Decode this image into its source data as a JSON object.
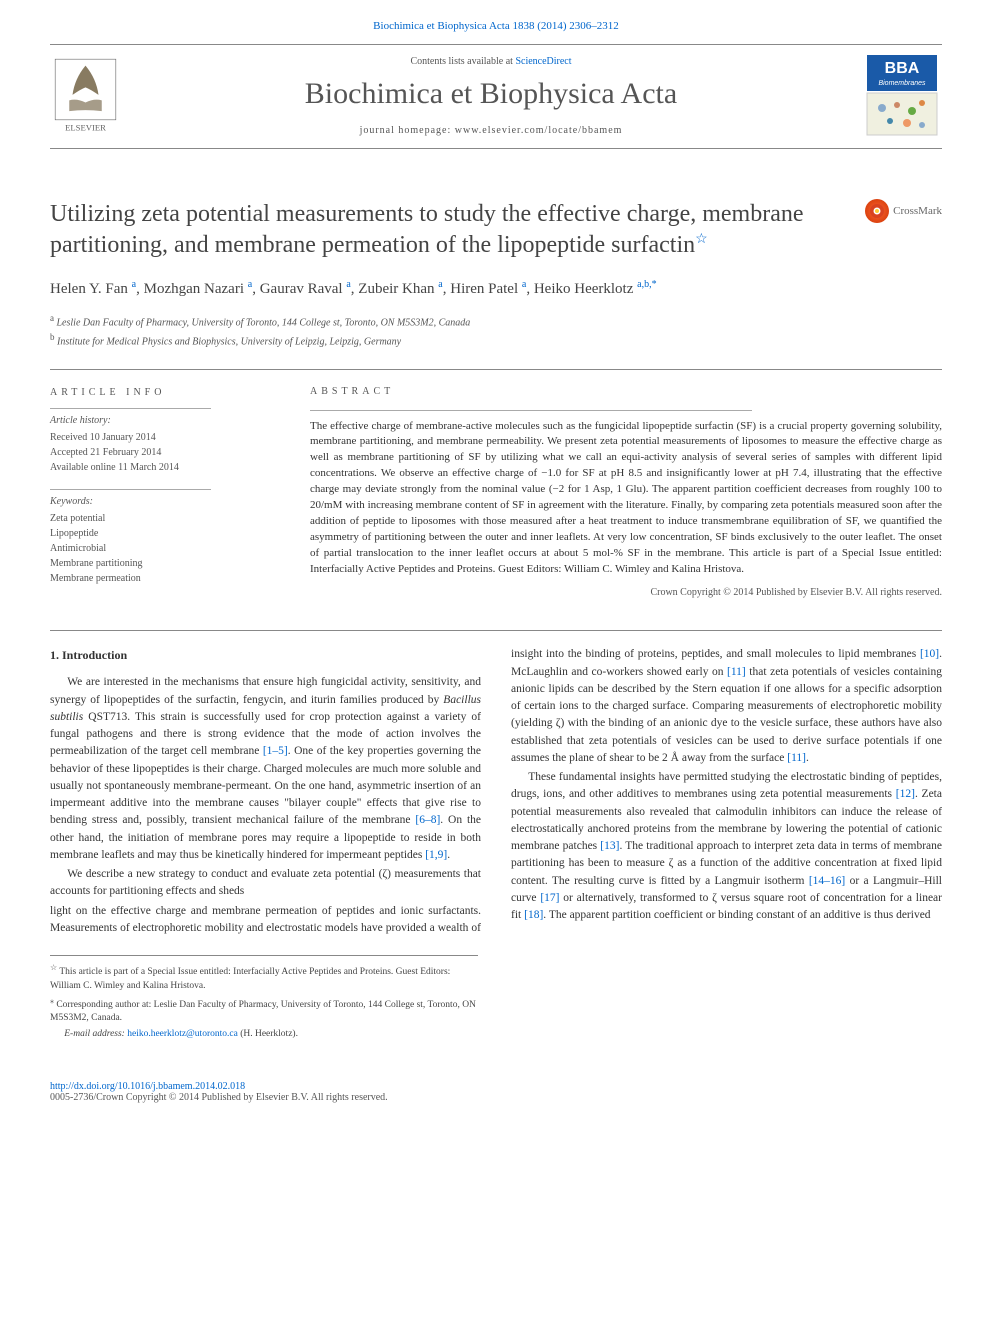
{
  "header": {
    "top_link": "Biochimica et Biophysica Acta 1838 (2014) 2306–2312",
    "contents_prefix": "Contents lists available at ",
    "contents_link": "ScienceDirect",
    "journal_name": "Biochimica et Biophysica Acta",
    "homepage_prefix": "journal homepage: ",
    "homepage_url": "www.elsevier.com/locate/bbamem",
    "elsevier_label": "ELSEVIER",
    "bba_label": "BBA",
    "bba_sublabel": "Biomembranes"
  },
  "title": "Utilizing zeta potential measurements to study the effective charge, membrane partitioning, and membrane permeation of the lipopeptide surfactin",
  "title_star": "☆",
  "crossmark_label": "CrossMark",
  "authors": [
    {
      "name": "Helen Y. Fan",
      "aff": "a"
    },
    {
      "name": "Mozhgan Nazari",
      "aff": "a"
    },
    {
      "name": "Gaurav Raval",
      "aff": "a"
    },
    {
      "name": "Zubeir Khan",
      "aff": "a"
    },
    {
      "name": "Hiren Patel",
      "aff": "a"
    },
    {
      "name": "Heiko Heerklotz",
      "aff": "a,b,",
      "corr": true
    }
  ],
  "affiliations": [
    {
      "sup": "a",
      "text": "Leslie Dan Faculty of Pharmacy, University of Toronto, 144 College st, Toronto, ON M5S3M2, Canada"
    },
    {
      "sup": "b",
      "text": "Institute for Medical Physics and Biophysics, University of Leipzig, Leipzig, Germany"
    }
  ],
  "article_info": {
    "heading": "article info",
    "history_label": "Article history:",
    "received": "Received 10 January 2014",
    "accepted": "Accepted 21 February 2014",
    "online": "Available online 11 March 2014",
    "keywords_label": "Keywords:",
    "keywords": [
      "Zeta potential",
      "Lipopeptide",
      "Antimicrobial",
      "Membrane partitioning",
      "Membrane permeation"
    ]
  },
  "abstract": {
    "heading": "abstract",
    "text": "The effective charge of membrane-active molecules such as the fungicidal lipopeptide surfactin (SF) is a crucial property governing solubility, membrane partitioning, and membrane permeability. We present zeta potential measurements of liposomes to measure the effective charge as well as membrane partitioning of SF by utilizing what we call an equi-activity analysis of several series of samples with different lipid concentrations. We observe an effective charge of −1.0 for SF at pH 8.5 and insignificantly lower at pH 7.4, illustrating that the effective charge may deviate strongly from the nominal value (−2 for 1 Asp, 1 Glu). The apparent partition coefficient decreases from roughly 100 to 20/mM with increasing membrane content of SF in agreement with the literature. Finally, by comparing zeta potentials measured soon after the addition of peptide to liposomes with those measured after a heat treatment to induce transmembrane equilibration of SF, we quantified the asymmetry of partitioning between the outer and inner leaflets. At very low concentration, SF binds exclusively to the outer leaflet. The onset of partial translocation to the inner leaflet occurs at about 5 mol-% SF in the membrane. This article is part of a Special Issue entitled: Interfacially Active Peptides and Proteins. Guest Editors: William C. Wimley and Kalina Hristova.",
    "copyright": "Crown Copyright © 2014 Published by Elsevier B.V. All rights reserved."
  },
  "intro": {
    "heading": "1. Introduction",
    "p1_a": "We are interested in the mechanisms that ensure high fungicidal activity, sensitivity, and synergy of lipopeptides of the surfactin, fengycin, and iturin families produced by ",
    "p1_b_italic": "Bacillus subtilis",
    "p1_c": " QST713. This strain is successfully used for crop protection against a variety of fungal pathogens and there is strong evidence that the mode of action involves the permeabilization of the target cell membrane ",
    "p1_ref1": "[1–5]",
    "p1_d": ". One of the key properties governing the behavior of these lipopeptides is their charge. Charged molecules are much more soluble and usually not spontaneously membrane-permeant. On the one hand, asymmetric insertion of an impermeant additive into the membrane causes \"bilayer couple\" effects that give rise to bending stress and, possibly, transient mechanical failure of the membrane ",
    "p1_ref2": "[6–8]",
    "p1_e": ". On the other hand, the initiation of membrane pores may require a lipopeptide to reside in both membrane leaflets and may thus be kinetically hindered for impermeant peptides ",
    "p1_ref3": "[1,9]",
    "p1_f": ".",
    "p2": "We describe a new strategy to conduct and evaluate zeta potential (ζ) measurements that accounts for partitioning effects and sheds",
    "p3_a": "light on the effective charge and membrane permeation of peptides and ionic surfactants. Measurements of electrophoretic mobility and electrostatic models have provided a wealth of insight into the binding of proteins, peptides, and small molecules to lipid membranes ",
    "p3_ref1": "[10]",
    "p3_b": ". McLaughlin and co-workers showed early on ",
    "p3_ref2": "[11]",
    "p3_c": " that zeta potentials of vesicles containing anionic lipids can be described by the Stern equation if one allows for a specific adsorption of certain ions to the charged surface. Comparing measurements of electrophoretic mobility (yielding ζ) with the binding of an anionic dye to the vesicle surface, these authors have also established that zeta potentials of vesicles can be used to derive surface potentials if one assumes the plane of shear to be 2 Å away from the surface ",
    "p3_ref3": "[11]",
    "p3_d": ".",
    "p4_a": "These fundamental insights have permitted studying the electrostatic binding of peptides, drugs, ions, and other additives to membranes using zeta potential measurements ",
    "p4_ref1": "[12]",
    "p4_b": ". Zeta potential measurements also revealed that calmodulin inhibitors can induce the release of electrostatically anchored proteins from the membrane by lowering the potential of cationic membrane patches ",
    "p4_ref2": "[13]",
    "p4_c": ". The traditional approach to interpret zeta data in terms of membrane partitioning has been to measure ζ as a function of the additive concentration at fixed lipid content. The resulting curve is fitted by a Langmuir isotherm ",
    "p4_ref3": "[14–16]",
    "p4_d": " or a Langmuir–Hill curve ",
    "p4_ref4": "[17]",
    "p4_e": " or alternatively, transformed to ζ versus square root of concentration for a linear fit ",
    "p4_ref5": "[18]",
    "p4_f": ". The apparent partition coefficient or binding constant of an additive is thus derived"
  },
  "footnotes": {
    "f1_star": "☆",
    "f1": "This article is part of a Special Issue entitled: Interfacially Active Peptides and Proteins. Guest Editors: William C. Wimley and Kalina Hristova.",
    "f2_star": "⁎",
    "f2": "Corresponding author at: Leslie Dan Faculty of Pharmacy, University of Toronto, 144 College st, Toronto, ON M5S3M2, Canada.",
    "email_label": "E-mail address: ",
    "email": "heiko.heerklotz@utoronto.ca",
    "email_after": " (H. Heerklotz)."
  },
  "footer": {
    "doi": "http://dx.doi.org/10.1016/j.bbamem.2014.02.018",
    "issn": "0005-2736/Crown Copyright © 2014 Published by Elsevier B.V. All rights reserved."
  },
  "colors": {
    "link": "#0066cc",
    "text": "#333333",
    "muted": "#555555",
    "rule": "#888888",
    "elsevier_orange": "#ee7f1a",
    "bba_blue": "#1a5aa8",
    "crossmark_red": "#d9431f"
  }
}
